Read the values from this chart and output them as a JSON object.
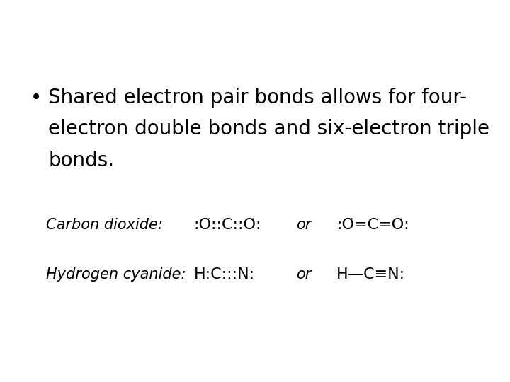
{
  "bg_color": "#ffffff",
  "bullet_text_line1": "Shared electron pair bonds allows for four-",
  "bullet_text_line2": "electron double bonds and six-electron triple",
  "bullet_text_line3": "bonds.",
  "bullet_symbol": "•",
  "bullet_fontsize": 20,
  "row1_label": "Carbon dioxide:",
  "row1_lewis": ":Ö::C::Ö:",
  "row1_or": "or",
  "row1_structural": ":Ö=C=Ö:",
  "row2_label": "Hydrogen cyanide:",
  "row2_lewis": "H:C:::N:",
  "row2_or": "or",
  "row2_structural": "H—C≡N:",
  "formula_fontsize": 16,
  "label_fontsize": 15
}
